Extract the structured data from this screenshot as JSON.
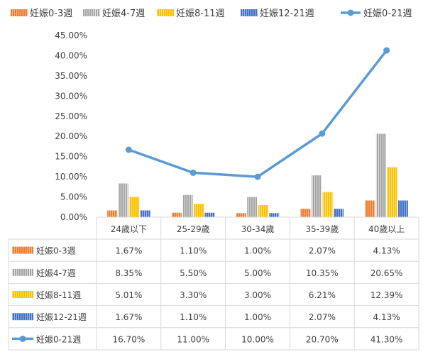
{
  "chart_data": {
    "type": "bar",
    "categories": [
      "24歲以下",
      "25-29歲",
      "30-34歲",
      "35-39歲",
      "40歲以上"
    ],
    "series": [
      {
        "name": "妊娠0-3週",
        "kind": "bar",
        "color": "#ed7d31",
        "values": [
          1.67,
          1.1,
          1.0,
          2.07,
          4.13
        ],
        "labels": [
          "1.67%",
          "1.10%",
          "1.00%",
          "2.07%",
          "4.13%"
        ]
      },
      {
        "name": "妊娠4-7週",
        "kind": "bar",
        "color": "#a5a5a5",
        "values": [
          8.35,
          5.5,
          5.0,
          10.35,
          20.65
        ],
        "labels": [
          "8.35%",
          "5.50%",
          "5.00%",
          "10.35%",
          "20.65%"
        ]
      },
      {
        "name": "妊娠8-11週",
        "kind": "bar",
        "color": "#ffc000",
        "values": [
          5.01,
          3.3,
          3.0,
          6.21,
          12.39
        ],
        "labels": [
          "5.01%",
          "3.30%",
          "3.00%",
          "6.21%",
          "12.39%"
        ]
      },
      {
        "name": "妊娠12-21週",
        "kind": "bar",
        "color": "#4472c4",
        "values": [
          1.67,
          1.1,
          1.0,
          2.07,
          4.13
        ],
        "labels": [
          "1.67%",
          "1.10%",
          "1.00%",
          "2.07%",
          "4.13%"
        ]
      },
      {
        "name": "妊娠0-21週",
        "kind": "line",
        "color": "#5b9bd5",
        "values": [
          16.7,
          11.0,
          10.0,
          20.7,
          41.3
        ],
        "labels": [
          "16.70%",
          "11.00%",
          "10.00%",
          "20.70%",
          "41.30%"
        ]
      }
    ],
    "y_ticks": [
      "0.00%",
      "5.00%",
      "10.00%",
      "15.00%",
      "20.00%",
      "25.00%",
      "30.00%",
      "35.00%",
      "40.00%",
      "45.00%"
    ],
    "ylim": [
      0,
      45
    ],
    "grid": false,
    "legend": "top",
    "data_table": true
  }
}
